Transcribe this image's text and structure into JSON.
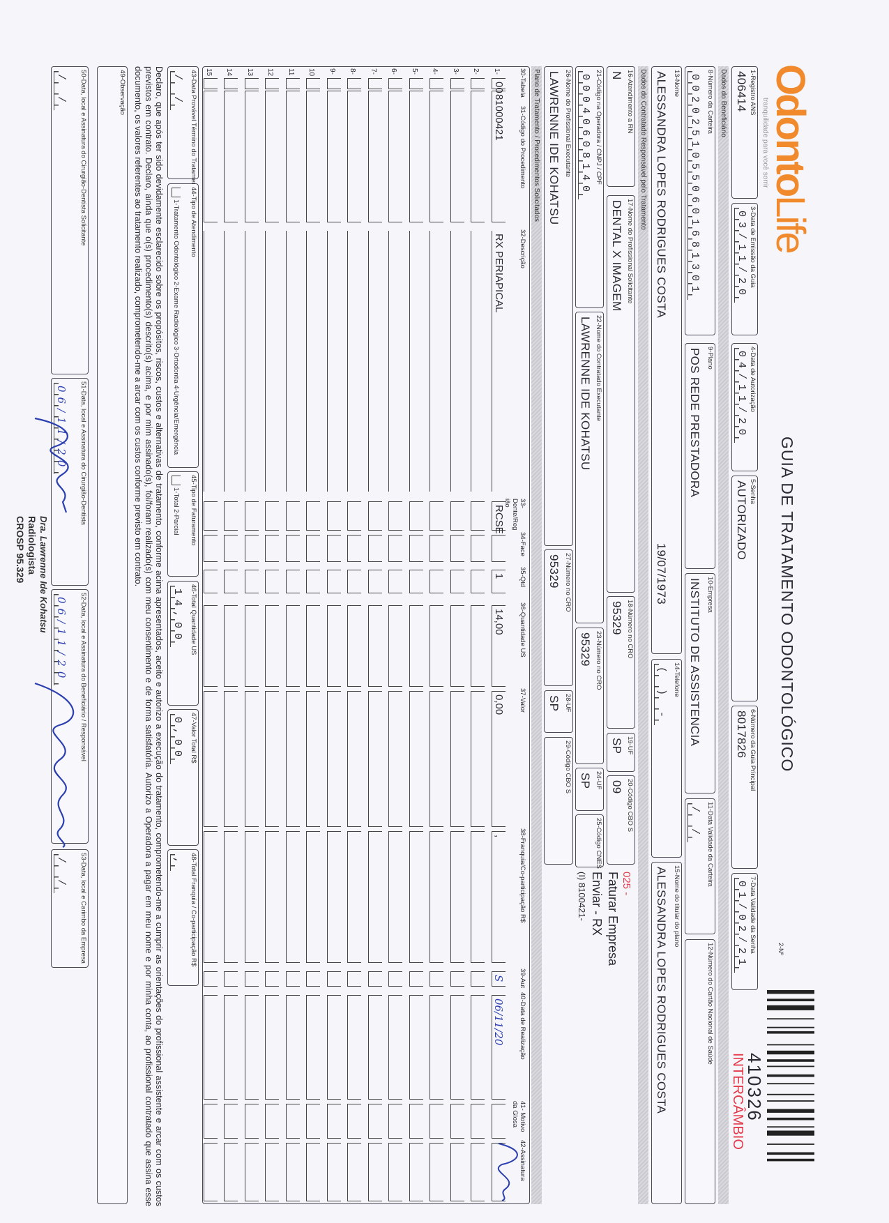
{
  "header": {
    "logo_text": "Odonto",
    "logo_text2": "Life",
    "logo_tagline": "tranquilidade para você sorrir",
    "title": "GUIA DE TRATAMENTO ODONTOLÓGICO",
    "numero_label": "2-Nº",
    "numero": "410326",
    "intercambio": "INTERCÂMBIO",
    "intercambio_color": "#e23b4c",
    "brand_color": "#f08a2c"
  },
  "sections": {
    "beneficiario": "Dados do Beneficiário",
    "contratado": "Dados do Contratado Responsável pelo Tratamento",
    "plano": "Plano de Tratamento / Procedimentos Solicitados"
  },
  "fields": {
    "registro_ans": {
      "label": "1-Registro ANS",
      "value": "406414"
    },
    "data_emissao": {
      "label": "3-Data de Emissão da Guia",
      "value": "03/11/20"
    },
    "data_autorizacao": {
      "label": "4-Data de Autorização",
      "value": "04/11/20"
    },
    "senha": {
      "label": "5-Senha",
      "value": "AUTORIZADO"
    },
    "guia_principal": {
      "label": "6-Número da Guia Principal",
      "value": "8017826"
    },
    "validade_senha": {
      "label": "7-Data Validade da Senha",
      "value": "01/02/21"
    },
    "carteira": {
      "label": "8-Número da Carteira",
      "value": "00202510550601681301"
    },
    "plano": {
      "label": "9-Plano",
      "value": "POS REDE PRESTADORA"
    },
    "empresa": {
      "label": "10-Empresa",
      "value": "INSTITUTO DE ASSISTENCIA"
    },
    "validade_carteira": {
      "label": "11-Data Validade da Carteira",
      "value": "  /  /  "
    },
    "cns": {
      "label": "12-Número do Cartão Nacional de Saúde",
      "value": ""
    },
    "nome": {
      "label": "13-Nome",
      "value": "ALESSANDRA LOPES RODRIGUES COSTA",
      "extra": "19/07/1973"
    },
    "telefone": {
      "label": "14-Telefone",
      "value": "(  )     -    "
    },
    "titular": {
      "label": "15-Nome do titular do plano",
      "value": "ALESSANDRA LOPES RODRIGUES COSTA"
    },
    "rn": {
      "label": "16-Atendimento a RN",
      "value": "N"
    },
    "solicitante": {
      "label": "17-Nome do Profissional Solicitante",
      "value": "DENTAL X IMAGEM"
    },
    "cro18": {
      "label": "18-Número no CRO",
      "value": "95329"
    },
    "uf19": {
      "label": "19-UF",
      "value": "SP"
    },
    "cbo20": {
      "label": "20-Código CBO S",
      "value": "09"
    },
    "codigo21": {
      "label": "21-Código na Operadora / CNPJ / CPF",
      "value": "00040608140   "
    },
    "contratado22": {
      "label": "22-Nome do Contratado Executante",
      "value": "LAWRENNE IDE KOHATSU"
    },
    "cro23": {
      "label": "23-Número no CRO",
      "value": "95329"
    },
    "uf24": {
      "label": "24-UF",
      "value": "SP"
    },
    "cnes25": {
      "label": "25-Código CNES",
      "value": ""
    },
    "executante26": {
      "label": "26-Nome do Profissional Executante",
      "value": "LAWRENNE IDE KOHATSU"
    },
    "cro27": {
      "label": "27-Número no CRO",
      "value": "95329"
    },
    "uf28": {
      "label": "28-UF",
      "value": "SP"
    },
    "cbo29": {
      "label": "29-Código CBO S",
      "value": ""
    },
    "termino43": {
      "label": "43-Data Provável Término do Tratamento",
      "value": "  /  /  "
    },
    "tipo44": {
      "label": "44-Tipo de Atendimento",
      "value": "",
      "options": "1-Tratamento Odontológico  2-Exame Radiológico  3-Ortodontia  4-Urgência/Emergência"
    },
    "faturamento45": {
      "label": "45-Tipo de Faturamento",
      "value": "",
      "options": "1-Total  2-Parcial"
    },
    "total_us46": {
      "label": "46-Total Quantidade US",
      "value": "14,00"
    },
    "valor_total47": {
      "label": "47-Valor Total R$",
      "value": "0,00"
    },
    "franquia48": {
      "label": "48-Total Franquia / Co-participação R$",
      "value": ","
    },
    "obs49": {
      "label": "49-Observação",
      "value": ""
    },
    "assin50": {
      "label": "50-Data, local e Assinatura do Cirurgião-Dentista Solicitante",
      "value": "  /  /  "
    },
    "assin51": {
      "label": "51-Data, local e Assinatura do Cirurgião-Dentista",
      "value": "06/11/20"
    },
    "assin52": {
      "label": "52-Data, local e Assinatura do Beneficiário / Responsável",
      "value": "06/11/20"
    },
    "assin53": {
      "label": "53-Data, local e Carimbo da Empresa",
      "value": "  /  /  "
    }
  },
  "notes": {
    "code": "025 -",
    "code_color": "#e23b4c",
    "line1": "Faturar Empresa",
    "line2": "Enviar - RX",
    "line3": "(I) 8100421-"
  },
  "table": {
    "columns": [
      "30-Tabela",
      "31-Código do Procedimento",
      "32-Descrição",
      "33-Dente/Região",
      "34-Face",
      "35-Qtd",
      "36-Quantidade US",
      "37-Valor",
      "38-Franquia/Co-participação R$",
      "39-Aut",
      "40-Data de Realização",
      "41- Motivo da Glosa",
      "42-Assinatura"
    ],
    "rows": [
      {
        "num": "1-",
        "tabela": "00",
        "codigo": "81000421",
        "descricao": "RX PERIAPICAL",
        "dente": "RCSE",
        "face": "",
        "qtd": "1",
        "qtd_us": "14,00",
        "valor": "0,00",
        "franquia": ",",
        "aut": "S",
        "data": "06/11/20",
        "glosa": "",
        "assinatura": ""
      },
      {
        "num": "2-"
      },
      {
        "num": "3-"
      },
      {
        "num": "4-"
      },
      {
        "num": "5-"
      },
      {
        "num": "6-"
      },
      {
        "num": "7-"
      },
      {
        "num": "8-"
      },
      {
        "num": "9-"
      },
      {
        "num": "10"
      },
      {
        "num": "11"
      },
      {
        "num": "12"
      },
      {
        "num": "13"
      },
      {
        "num": "14"
      },
      {
        "num": "15"
      }
    ]
  },
  "declaration": "Declaro, que após ter sido devidamente esclarecido sobre os propósitos, riscos, custos e alternativas de tratamento, conforme acima apresentados, aceito e autorizo a execução do tratamento, comprometendo-me a cumprir as orientações do profissional assistente e arcar com os custos previstos em contrato. Declaro, ainda que o(s) procedimento(s) descrito(s) acima, e por mim assinado(s), foi/foram realizado(s) com meu consentimento e de forma satisfatória. Autorizo a Operadora a pagar em meu nome e por minha conta, ao profissional contratado que assina esse documento, os valores referentes ao tratamento realizado, comprometendo-me a arcar com os custos conforme previsto em contrato.",
  "stamp": {
    "line1": "Dra. Lawrenne Ide Kohatsu",
    "line2": "Radiologista",
    "line3": "CROSP 95.329"
  }
}
